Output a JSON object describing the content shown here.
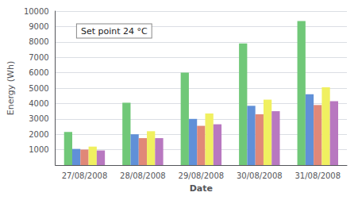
{
  "chart_data": {
    "type": "bar",
    "categories": [
      "27/08/2008",
      "28/08/2008",
      "29/08/2008",
      "30/08/2008",
      "31/08/2008"
    ],
    "series": [
      {
        "color": "#70c878",
        "values": [
          2150,
          4050,
          6000,
          7900,
          9350
        ]
      },
      {
        "color": "#6090d8",
        "values": [
          1050,
          2000,
          3000,
          3850,
          4600
        ]
      },
      {
        "color": "#e08878",
        "values": [
          1000,
          1750,
          2550,
          3300,
          3900
        ]
      },
      {
        "color": "#f0f060",
        "values": [
          1200,
          2200,
          3350,
          4250,
          5050
        ]
      },
      {
        "color": "#b878c0",
        "values": [
          950,
          1750,
          2650,
          3500,
          4150
        ]
      }
    ],
    "xlabel": "Date",
    "ylabel": "Energy (Wh)",
    "annotation": "Set point 24 °C",
    "ylim": [
      0,
      10000
    ],
    "yticks": [
      {
        "value": 0,
        "label": ""
      },
      1000,
      2000,
      3000,
      4000,
      5000,
      6000,
      7000,
      8000,
      9000,
      10000
    ],
    "grid": true
  }
}
